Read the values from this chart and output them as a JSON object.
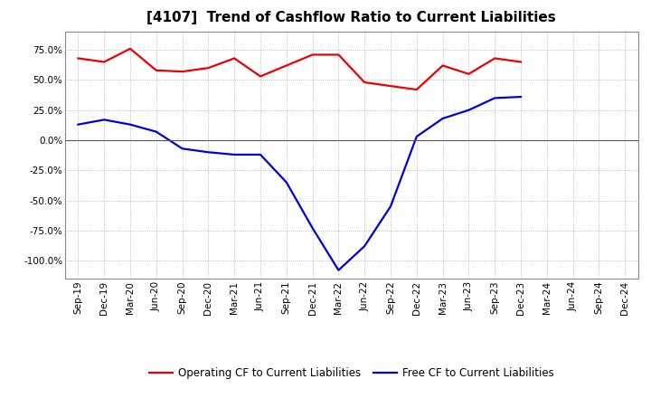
{
  "title": "[4107]  Trend of Cashflow Ratio to Current Liabilities",
  "x_labels": [
    "Sep-19",
    "Dec-19",
    "Mar-20",
    "Jun-20",
    "Sep-20",
    "Dec-20",
    "Mar-21",
    "Jun-21",
    "Sep-21",
    "Dec-21",
    "Mar-22",
    "Jun-22",
    "Sep-22",
    "Dec-22",
    "Mar-23",
    "Jun-23",
    "Sep-23",
    "Dec-23",
    "Mar-24",
    "Jun-24",
    "Sep-24",
    "Dec-24"
  ],
  "operating_cf": [
    0.68,
    0.65,
    0.76,
    0.58,
    0.57,
    0.6,
    0.68,
    0.53,
    0.62,
    0.71,
    0.71,
    0.48,
    0.45,
    0.42,
    0.62,
    0.55,
    0.68,
    0.65,
    null,
    null,
    null,
    null
  ],
  "free_cf": [
    0.13,
    0.17,
    0.13,
    0.07,
    -0.07,
    -0.1,
    -0.12,
    -0.12,
    -0.35,
    -0.73,
    -1.08,
    -0.88,
    -0.55,
    0.03,
    0.18,
    0.25,
    0.35,
    0.36,
    null,
    null,
    null,
    null
  ],
  "ylim": [
    -1.15,
    0.9
  ],
  "yticks": [
    -1.0,
    -0.75,
    -0.5,
    -0.25,
    0.0,
    0.25,
    0.5,
    0.75
  ],
  "operating_color": "#EE0000",
  "free_color": "#0000DD",
  "grid_color": "#AAAAAA",
  "zero_line_color": "#555555",
  "background_color": "#FFFFFF",
  "legend_operating": "Operating CF to Current Liabilities",
  "legend_free": "Free CF to Current Liabilities",
  "title_fontsize": 11,
  "axis_fontsize": 7.5,
  "legend_fontsize": 8.5,
  "line_width": 1.6
}
